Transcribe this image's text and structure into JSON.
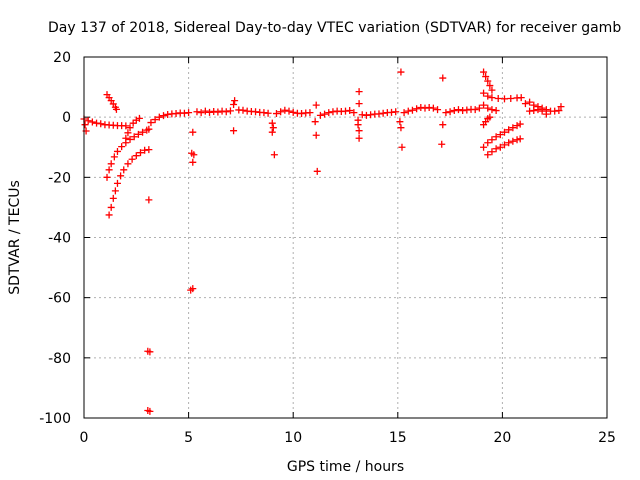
{
  "chart_data": {
    "type": "scatter",
    "title": "Day 137 of 2018, Sidereal Day-to-day VTEC variation (SDTVAR) for receiver gamb",
    "xlabel": "GPS time / hours",
    "ylabel": "SDTVAR / TECUs",
    "xlim": [
      0,
      25
    ],
    "ylim": [
      -100,
      20
    ],
    "xticks": [
      0,
      5,
      10,
      15,
      20,
      25
    ],
    "yticks": [
      -100,
      -80,
      -60,
      -40,
      -20,
      0,
      20
    ],
    "grid": true,
    "marker": "+",
    "marker_color": "#ff0000",
    "series": [
      {
        "name": "SDTVAR",
        "points": [
          [
            0.0,
            -0.6
          ],
          [
            0.05,
            -2.5
          ],
          [
            0.1,
            -4.6
          ],
          [
            0.2,
            -1.2
          ],
          [
            0.4,
            -1.6
          ],
          [
            0.6,
            -2.0
          ],
          [
            0.8,
            -2.2
          ],
          [
            1.0,
            -2.5
          ],
          [
            1.2,
            -2.6
          ],
          [
            1.4,
            -2.7
          ],
          [
            1.6,
            -2.8
          ],
          [
            1.8,
            -2.8
          ],
          [
            2.0,
            -2.9
          ],
          [
            1.1,
            7.5
          ],
          [
            1.2,
            6.5
          ],
          [
            1.3,
            5.5
          ],
          [
            1.4,
            4.4
          ],
          [
            1.5,
            3.3
          ],
          [
            1.55,
            2.6
          ],
          [
            1.1,
            -20.0
          ],
          [
            1.2,
            -17.5
          ],
          [
            1.3,
            -15.5
          ],
          [
            1.45,
            -13.2
          ],
          [
            1.6,
            -11.4
          ],
          [
            1.8,
            -9.8
          ],
          [
            2.0,
            -8.5
          ],
          [
            2.2,
            -7.4
          ],
          [
            2.4,
            -6.5
          ],
          [
            2.6,
            -5.7
          ],
          [
            2.8,
            -5.0
          ],
          [
            3.0,
            -4.3
          ],
          [
            3.1,
            -4.0
          ],
          [
            1.2,
            -32.5
          ],
          [
            1.3,
            -30.0
          ],
          [
            1.4,
            -27.0
          ],
          [
            1.5,
            -24.5
          ],
          [
            1.6,
            -22.0
          ],
          [
            1.75,
            -19.5
          ],
          [
            1.9,
            -17.5
          ],
          [
            2.1,
            -15.5
          ],
          [
            2.3,
            -14.0
          ],
          [
            2.5,
            -12.8
          ],
          [
            2.7,
            -11.8
          ],
          [
            2.9,
            -11.0
          ],
          [
            3.1,
            -10.8
          ],
          [
            2.0,
            -7.0
          ],
          [
            2.1,
            -5.2
          ],
          [
            2.2,
            -3.5
          ],
          [
            2.35,
            -2.0
          ],
          [
            2.5,
            -1.0
          ],
          [
            2.65,
            -0.4
          ],
          [
            3.1,
            -27.5
          ],
          [
            3.05,
            -77.8
          ],
          [
            3.15,
            -78.0
          ],
          [
            3.05,
            -97.5
          ],
          [
            3.15,
            -97.8
          ],
          [
            3.2,
            -1.8
          ],
          [
            3.4,
            -0.8
          ],
          [
            3.6,
            0.0
          ],
          [
            3.8,
            0.5
          ],
          [
            4.0,
            0.9
          ],
          [
            4.2,
            1.1
          ],
          [
            4.4,
            1.2
          ],
          [
            4.6,
            1.4
          ],
          [
            4.8,
            1.3
          ],
          [
            5.0,
            1.5
          ],
          [
            5.2,
            -5.0
          ],
          [
            5.15,
            -12.0
          ],
          [
            5.25,
            -12.5
          ],
          [
            5.2,
            -15.0
          ],
          [
            5.1,
            -57.5
          ],
          [
            5.2,
            -57.0
          ],
          [
            5.4,
            1.8
          ],
          [
            5.6,
            1.5
          ],
          [
            5.8,
            2.0
          ],
          [
            6.0,
            1.6
          ],
          [
            6.2,
            1.9
          ],
          [
            6.4,
            1.7
          ],
          [
            6.6,
            2.0
          ],
          [
            6.8,
            1.8
          ],
          [
            7.0,
            2.1
          ],
          [
            7.2,
            5.5
          ],
          [
            7.15,
            4.2
          ],
          [
            7.15,
            -4.5
          ],
          [
            7.4,
            2.4
          ],
          [
            7.6,
            2.3
          ],
          [
            7.8,
            2.0
          ],
          [
            8.0,
            1.9
          ],
          [
            8.2,
            1.8
          ],
          [
            8.4,
            1.6
          ],
          [
            8.6,
            1.5
          ],
          [
            8.8,
            1.3
          ],
          [
            9.0,
            -2.0
          ],
          [
            9.05,
            -3.5
          ],
          [
            9.0,
            -5.0
          ],
          [
            9.1,
            -12.5
          ],
          [
            9.2,
            1.2
          ],
          [
            9.4,
            1.8
          ],
          [
            9.6,
            2.3
          ],
          [
            9.8,
            2.0
          ],
          [
            10.0,
            1.6
          ],
          [
            10.2,
            1.3
          ],
          [
            10.4,
            1.2
          ],
          [
            10.6,
            1.4
          ],
          [
            10.8,
            1.5
          ],
          [
            11.1,
            4.0
          ],
          [
            11.05,
            -1.5
          ],
          [
            11.1,
            -6.0
          ],
          [
            11.15,
            -18.0
          ],
          [
            11.3,
            0.6
          ],
          [
            11.5,
            1.0
          ],
          [
            11.7,
            1.5
          ],
          [
            11.9,
            1.8
          ],
          [
            12.1,
            2.0
          ],
          [
            12.3,
            1.9
          ],
          [
            12.5,
            2.0
          ],
          [
            12.7,
            2.2
          ],
          [
            12.9,
            1.5
          ],
          [
            13.15,
            8.5
          ],
          [
            13.15,
            4.5
          ],
          [
            13.1,
            -2.5
          ],
          [
            13.15,
            -4.5
          ],
          [
            13.15,
            -7.0
          ],
          [
            13.1,
            -1.0
          ],
          [
            13.3,
            0.8
          ],
          [
            13.5,
            0.6
          ],
          [
            13.7,
            0.8
          ],
          [
            13.9,
            1.0
          ],
          [
            14.1,
            1.1
          ],
          [
            14.3,
            1.3
          ],
          [
            14.5,
            1.5
          ],
          [
            14.7,
            1.6
          ],
          [
            14.9,
            1.8
          ],
          [
            15.15,
            15.0
          ],
          [
            15.15,
            -3.5
          ],
          [
            15.1,
            -1.5
          ],
          [
            15.2,
            -10.0
          ],
          [
            15.3,
            1.5
          ],
          [
            15.5,
            2.0
          ],
          [
            15.7,
            2.3
          ],
          [
            15.9,
            2.8
          ],
          [
            16.1,
            3.2
          ],
          [
            16.3,
            3.0
          ],
          [
            16.5,
            3.2
          ],
          [
            16.7,
            3.0
          ],
          [
            16.9,
            2.5
          ],
          [
            17.15,
            13.0
          ],
          [
            17.15,
            -2.5
          ],
          [
            17.1,
            -9.0
          ],
          [
            17.3,
            1.5
          ],
          [
            17.5,
            1.8
          ],
          [
            17.7,
            2.2
          ],
          [
            17.9,
            2.5
          ],
          [
            18.1,
            2.2
          ],
          [
            18.3,
            2.4
          ],
          [
            18.5,
            2.6
          ],
          [
            18.7,
            2.5
          ],
          [
            18.9,
            3.0
          ],
          [
            19.1,
            15.0
          ],
          [
            19.2,
            13.5
          ],
          [
            19.3,
            12.0
          ],
          [
            19.4,
            10.5
          ],
          [
            19.5,
            9.0
          ],
          [
            19.1,
            8.0
          ],
          [
            19.3,
            7.0
          ],
          [
            19.5,
            6.5
          ],
          [
            19.8,
            6.2
          ],
          [
            20.1,
            6.1
          ],
          [
            20.4,
            6.2
          ],
          [
            20.7,
            6.4
          ],
          [
            20.9,
            6.5
          ],
          [
            19.1,
            4.0
          ],
          [
            19.3,
            3.0
          ],
          [
            19.5,
            2.5
          ],
          [
            19.7,
            2.2
          ],
          [
            19.1,
            -2.5
          ],
          [
            19.2,
            -1.5
          ],
          [
            19.3,
            -0.5
          ],
          [
            19.4,
            0.0
          ],
          [
            19.1,
            -10.0
          ],
          [
            19.3,
            -8.5
          ],
          [
            19.5,
            -7.5
          ],
          [
            19.7,
            -6.5
          ],
          [
            19.9,
            -5.8
          ],
          [
            20.1,
            -5.0
          ],
          [
            20.3,
            -4.2
          ],
          [
            20.5,
            -3.5
          ],
          [
            20.7,
            -2.8
          ],
          [
            20.85,
            -2.3
          ],
          [
            19.3,
            -12.5
          ],
          [
            19.5,
            -11.5
          ],
          [
            19.7,
            -10.5
          ],
          [
            19.9,
            -10.0
          ],
          [
            20.1,
            -9.2
          ],
          [
            20.3,
            -8.5
          ],
          [
            20.5,
            -8.0
          ],
          [
            20.7,
            -7.5
          ],
          [
            20.85,
            -7.2
          ],
          [
            21.1,
            4.5
          ],
          [
            21.3,
            5.0
          ],
          [
            21.5,
            4.0
          ],
          [
            21.7,
            3.5
          ],
          [
            21.9,
            3.0
          ],
          [
            22.1,
            2.5
          ],
          [
            22.3,
            2.0
          ],
          [
            22.5,
            2.0
          ],
          [
            22.7,
            2.2
          ],
          [
            22.8,
            3.5
          ],
          [
            21.3,
            2.0
          ],
          [
            21.5,
            2.2
          ],
          [
            21.7,
            2.5
          ],
          [
            21.9,
            2.0
          ],
          [
            22.1,
            1.0
          ]
        ]
      }
    ]
  }
}
